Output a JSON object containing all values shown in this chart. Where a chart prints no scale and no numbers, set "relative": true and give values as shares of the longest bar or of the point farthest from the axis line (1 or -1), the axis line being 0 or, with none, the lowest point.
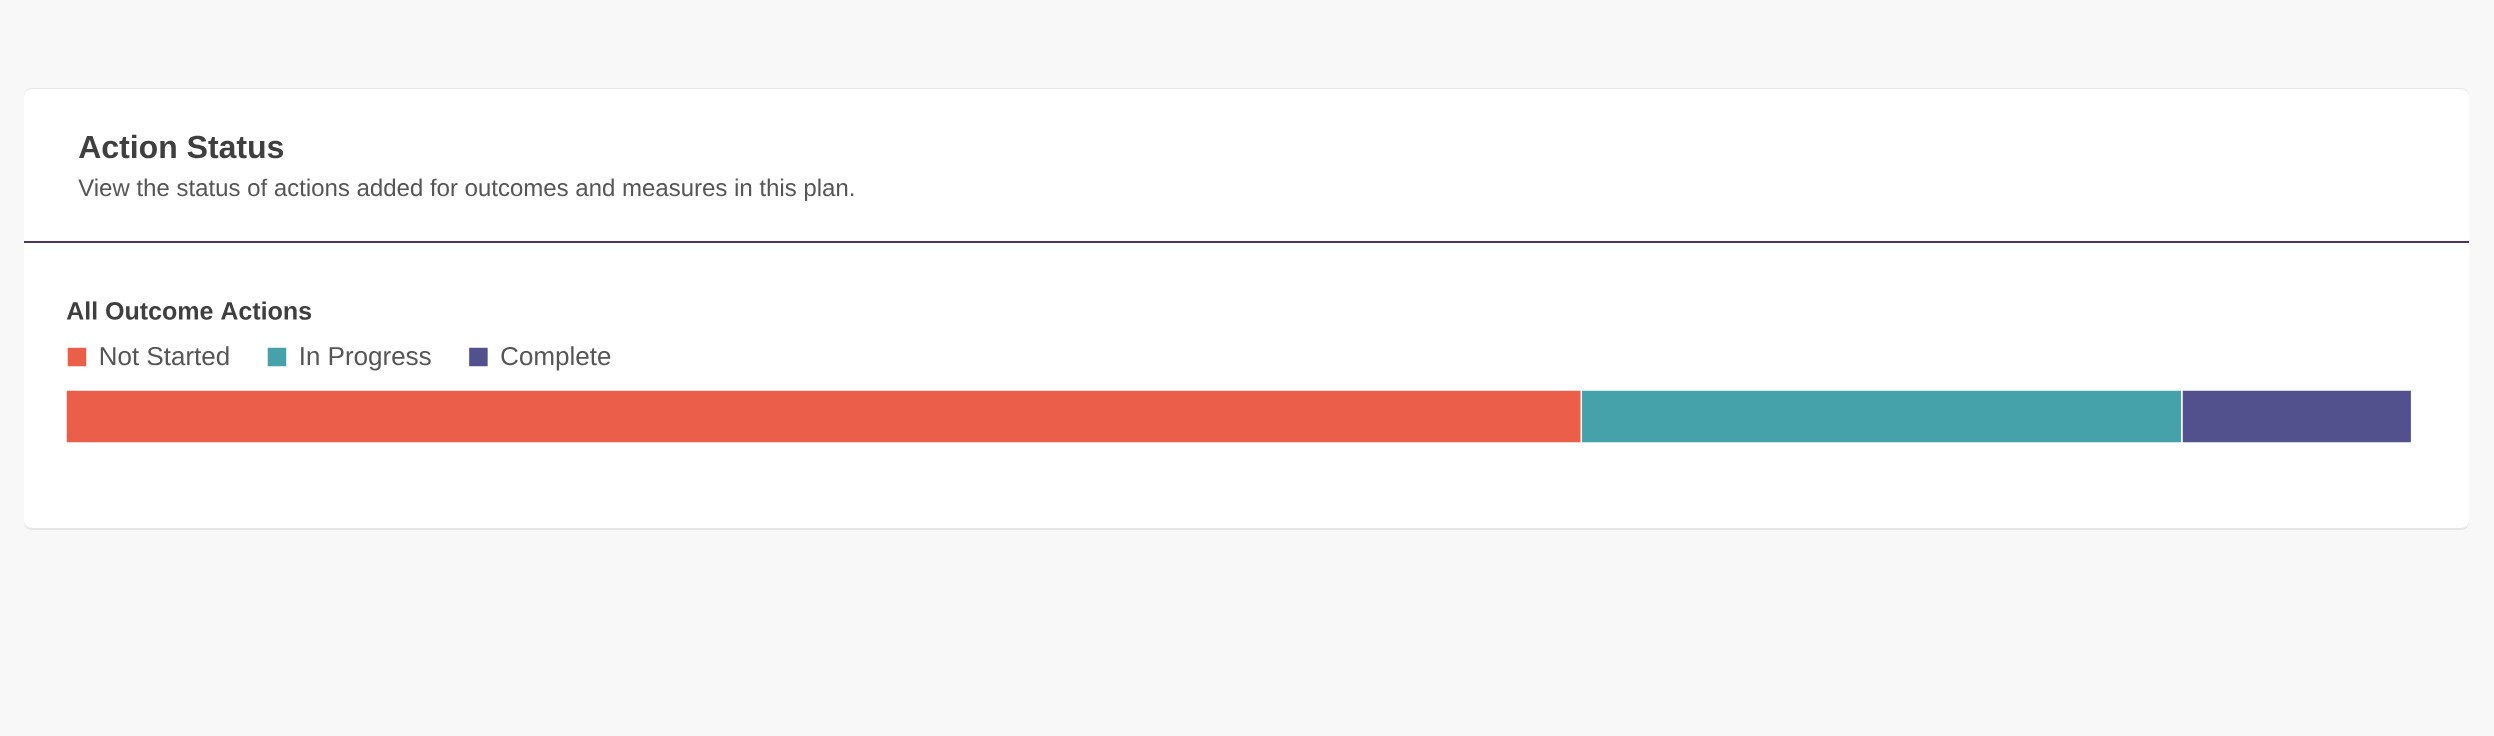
{
  "chart_data": {
    "type": "bar",
    "orientation": "horizontal",
    "stacked": true,
    "relative": true,
    "title": "Action Status",
    "subtitle": "View the status of actions added for outcomes and measures in this plan.",
    "categories": [
      "All Outcome Actions"
    ],
    "series": [
      {
        "name": "Not Started",
        "color": "#eb5e4a",
        "values": [
          0.646
        ]
      },
      {
        "name": "In Progress",
        "color": "#46a2aa",
        "values": [
          0.256
        ]
      },
      {
        "name": "Complete",
        "color": "#52508d",
        "values": [
          0.098
        ]
      }
    ],
    "legend": "top left"
  }
}
